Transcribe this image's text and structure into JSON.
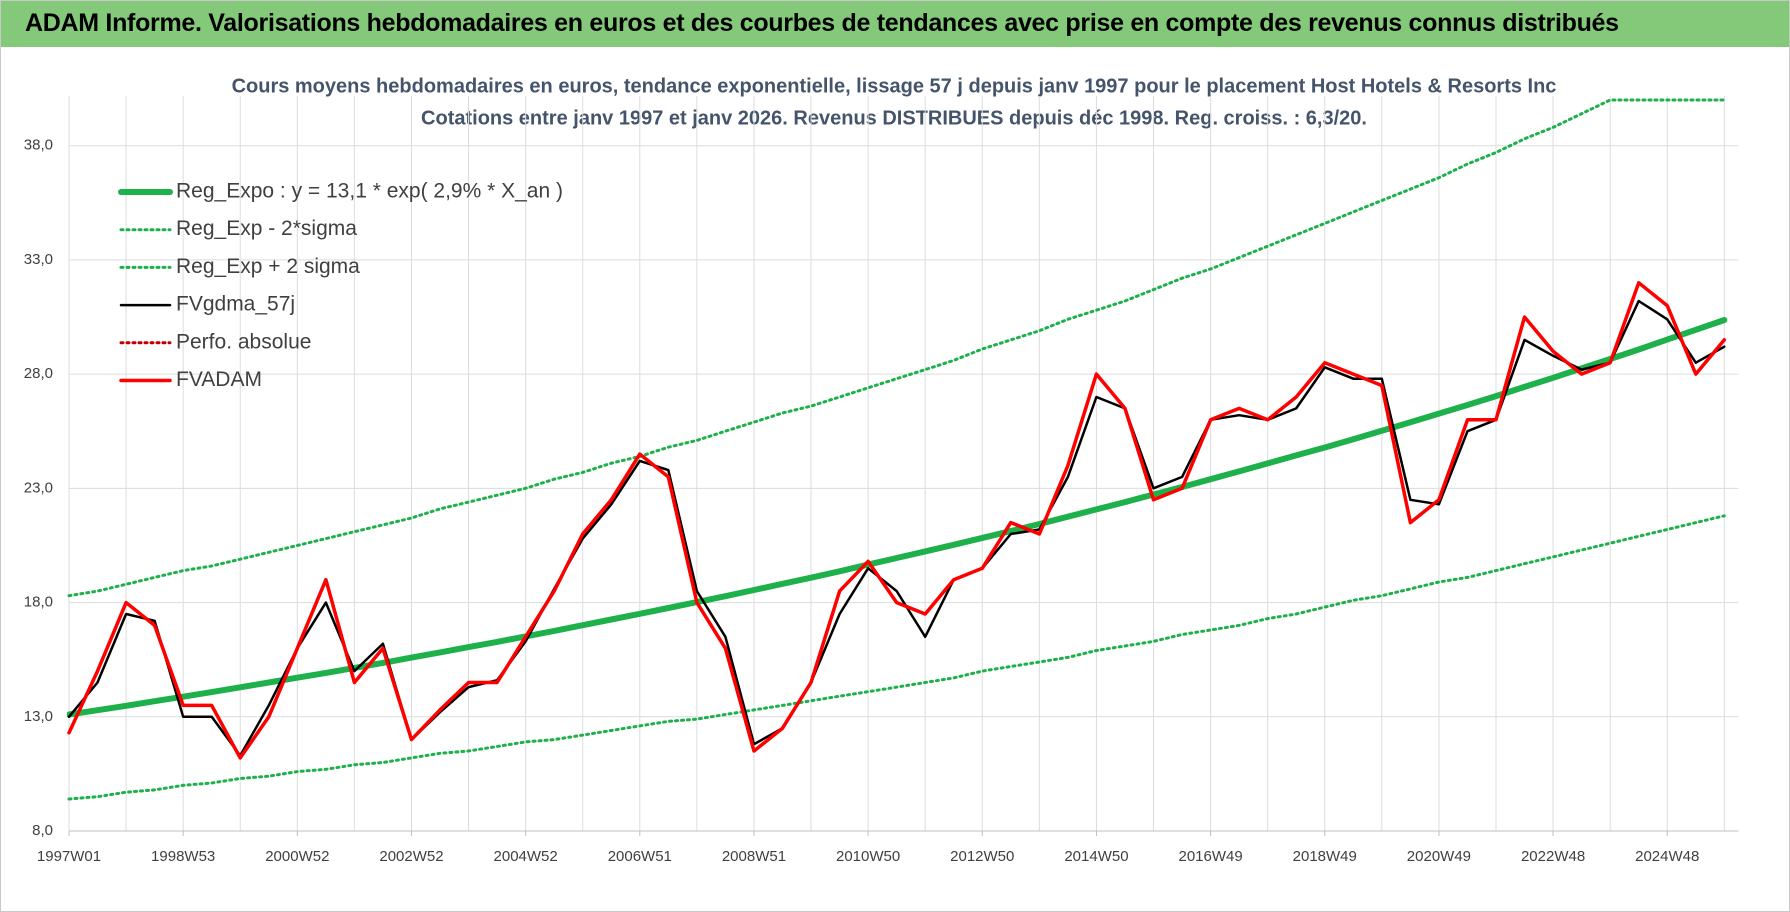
{
  "header": {
    "title": "ADAM Informe. Valorisations hebdomadaires en euros et des courbes de tendances avec prise en compte des revenus connus distribués"
  },
  "chart_data": {
    "type": "line",
    "title": "Cours moyens hebdomadaires en euros, tendance exponentielle, lissage 57 j depuis janv 1997  pour le placement Host Hotels & Resorts Inc",
    "subtitle": "Cotations entre janv 1997 et janv 2026. Revenus DISTRIBUES depuis déc 1998. Reg. croiss. : 6,3/20.",
    "categories": [
      "1997W01",
      null,
      null,
      null,
      "1998W53",
      null,
      null,
      null,
      "2000W52",
      null,
      null,
      null,
      "2002W52",
      null,
      null,
      null,
      "2004W52",
      null,
      null,
      null,
      "2006W51",
      null,
      null,
      null,
      "2008W51",
      null,
      null,
      null,
      "2010W50",
      null,
      null,
      null,
      "2012W50",
      null,
      null,
      null,
      "2014W50",
      null,
      null,
      null,
      "2016W49",
      null,
      null,
      null,
      "2018W49",
      null,
      null,
      null,
      "2020W49",
      null,
      null,
      null,
      "2022W48",
      null,
      null,
      null,
      "2024W48",
      null,
      null
    ],
    "ylim": [
      8,
      40
    ],
    "yticks": [
      {
        "value": 8,
        "label": "8,0"
      },
      {
        "value": 13,
        "label": "13,0"
      },
      {
        "value": 18,
        "label": "18,0"
      },
      {
        "value": 23,
        "label": "23,0"
      },
      {
        "value": 28,
        "label": "28,0"
      },
      {
        "value": 33,
        "label": "33,0"
      },
      {
        "value": 38,
        "label": "38,0"
      }
    ],
    "grid": true,
    "legend": "top-left",
    "series": [
      {
        "name": "Reg_Expo : y = 13,1 * exp( 2,9% *  X_an )",
        "color": "#1db04b",
        "style": "thick",
        "values": [
          13.1,
          13.29,
          13.48,
          13.68,
          13.88,
          14.08,
          14.29,
          14.5,
          14.71,
          14.92,
          15.14,
          15.36,
          15.59,
          15.82,
          16.05,
          16.28,
          16.52,
          16.76,
          17.01,
          17.26,
          17.51,
          17.76,
          18.02,
          18.28,
          18.55,
          18.82,
          19.09,
          19.37,
          19.66,
          19.95,
          20.24,
          20.53,
          20.83,
          21.13,
          21.44,
          21.76,
          22.08,
          22.4,
          22.73,
          23.06,
          23.4,
          23.74,
          24.09,
          24.44,
          24.79,
          25.15,
          25.52,
          25.89,
          26.27,
          26.65,
          27.04,
          27.44,
          27.84,
          28.25,
          28.66,
          29.08,
          29.51,
          29.94,
          30.37
        ]
      },
      {
        "name": "Reg_Exp - 2*sigma",
        "color": "#1db04b",
        "style": "dotted",
        "values": [
          9.4,
          9.5,
          9.7,
          9.8,
          10.0,
          10.1,
          10.3,
          10.4,
          10.6,
          10.7,
          10.9,
          11.0,
          11.2,
          11.4,
          11.5,
          11.7,
          11.9,
          12.0,
          12.2,
          12.4,
          12.6,
          12.8,
          12.9,
          13.1,
          13.3,
          13.5,
          13.7,
          13.9,
          14.1,
          14.3,
          14.5,
          14.7,
          15.0,
          15.2,
          15.4,
          15.6,
          15.9,
          16.1,
          16.3,
          16.6,
          16.8,
          17.0,
          17.3,
          17.5,
          17.8,
          18.1,
          18.3,
          18.6,
          18.9,
          19.1,
          19.4,
          19.7,
          20.0,
          20.3,
          20.6,
          20.9,
          21.2,
          21.5,
          21.8
        ]
      },
      {
        "name": "Reg_Exp + 2 sigma",
        "color": "#1db04b",
        "style": "dotted",
        "values": [
          18.3,
          18.5,
          18.8,
          19.1,
          19.4,
          19.6,
          19.9,
          20.2,
          20.5,
          20.8,
          21.1,
          21.4,
          21.7,
          22.1,
          22.4,
          22.7,
          23.0,
          23.4,
          23.7,
          24.1,
          24.4,
          24.8,
          25.1,
          25.5,
          25.9,
          26.3,
          26.6,
          27.0,
          27.4,
          27.8,
          28.2,
          28.6,
          29.1,
          29.5,
          29.9,
          30.4,
          30.8,
          31.2,
          31.7,
          32.2,
          32.6,
          33.1,
          33.6,
          34.1,
          34.6,
          35.1,
          35.6,
          36.1,
          36.6,
          37.2,
          37.7,
          38.3,
          38.8,
          39.4,
          40,
          40,
          40,
          40,
          40
        ]
      },
      {
        "name": "FVgdma_57j",
        "color": "#000000",
        "style": "solid",
        "values": [
          13.0,
          14.5,
          17.5,
          17.2,
          13.0,
          13.0,
          11.3,
          13.5,
          16.0,
          18.0,
          15.0,
          16.2,
          12.0,
          13.2,
          14.3,
          14.6,
          16.3,
          18.6,
          20.8,
          22.3,
          24.2,
          23.8,
          18.5,
          16.5,
          11.8,
          12.5,
          14.5,
          17.5,
          19.5,
          18.5,
          16.5,
          19.0,
          19.5,
          21.0,
          21.2,
          23.5,
          27.0,
          26.5,
          23.0,
          23.5,
          26.0,
          26.2,
          26.0,
          26.5,
          28.3,
          27.8,
          27.8,
          22.5,
          22.3,
          25.5,
          26.0,
          29.5,
          28.8,
          28.2,
          28.5,
          31.2,
          30.4,
          28.5,
          29.2
        ]
      },
      {
        "name": "Perfo. absolue",
        "color": "#c00000",
        "style": "dotted",
        "values": [
          null,
          null,
          null,
          null,
          null,
          null,
          null,
          null,
          null,
          null,
          null,
          null,
          null,
          null,
          null,
          null,
          null,
          null,
          null,
          null,
          null,
          null,
          null,
          null,
          null,
          null,
          null,
          null,
          null,
          null,
          null,
          null,
          null,
          null,
          null,
          null,
          null,
          null,
          null,
          null,
          null,
          null,
          null,
          null,
          null,
          null,
          null,
          null,
          null,
          null,
          null,
          null,
          null,
          null,
          null,
          null,
          null,
          null,
          null
        ]
      },
      {
        "name": "FVADAM",
        "color": "#ff0000",
        "style": "medium",
        "values": [
          12.3,
          15.0,
          18.0,
          17.0,
          13.5,
          13.5,
          11.2,
          13.0,
          16.0,
          19.0,
          14.5,
          16.0,
          12.0,
          13.3,
          14.5,
          14.5,
          16.5,
          18.5,
          21.0,
          22.5,
          24.5,
          23.5,
          18.0,
          16.0,
          11.5,
          12.5,
          14.5,
          18.5,
          19.8,
          18.0,
          17.5,
          19.0,
          19.5,
          21.5,
          21.0,
          24.0,
          28.0,
          26.5,
          22.5,
          23.0,
          26.0,
          26.5,
          26.0,
          27.0,
          28.5,
          28.0,
          27.5,
          21.5,
          22.5,
          26.0,
          26.0,
          30.5,
          29.0,
          28.0,
          28.5,
          32.0,
          31.0,
          28.0,
          29.5
        ]
      }
    ]
  }
}
